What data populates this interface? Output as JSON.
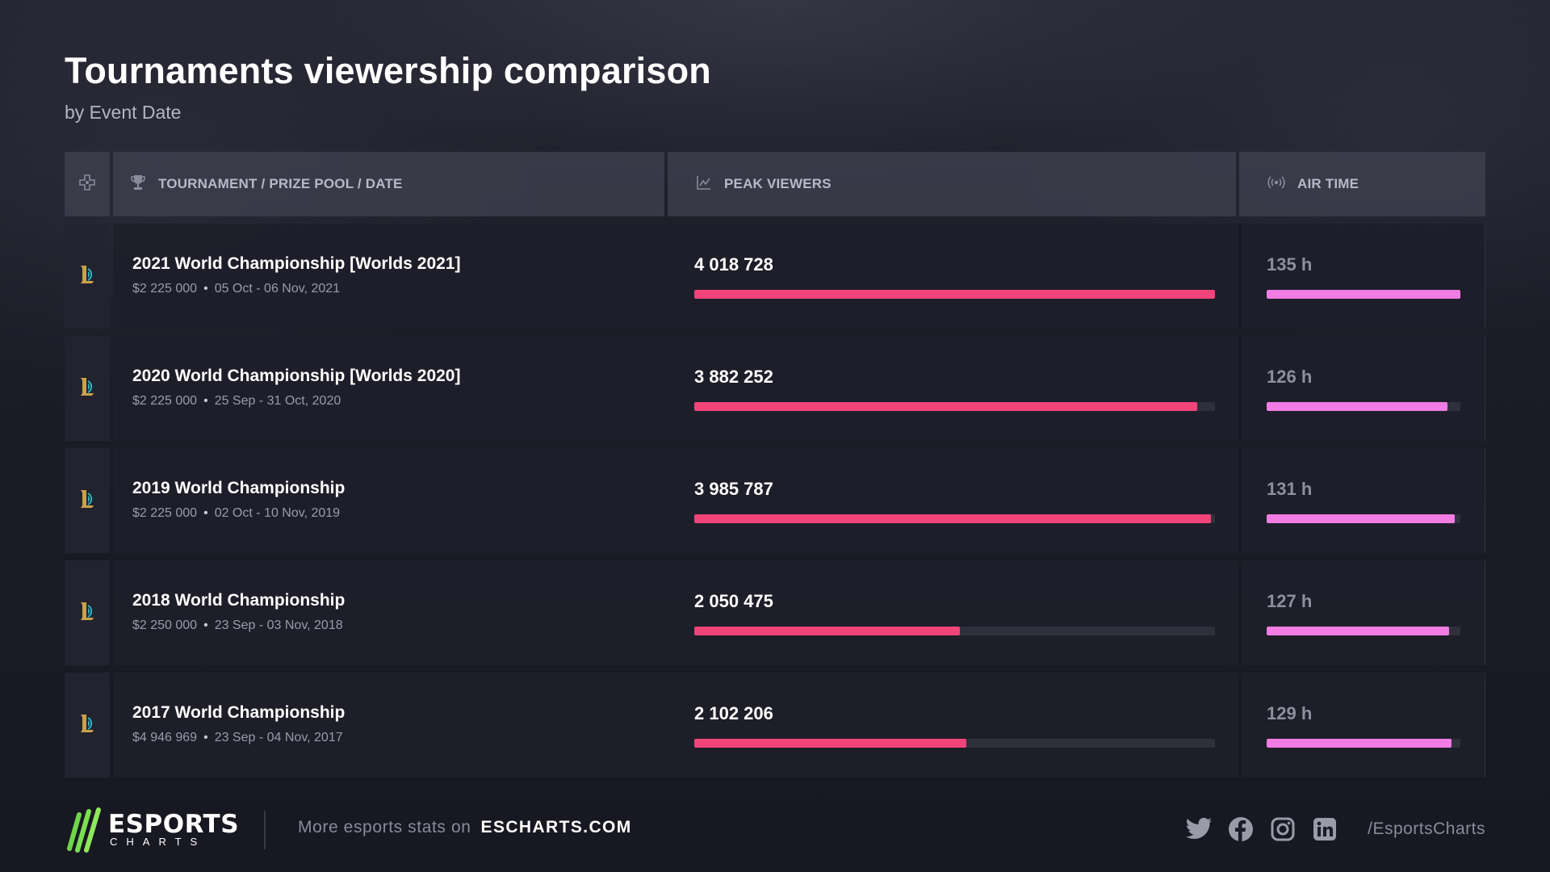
{
  "header": {
    "title": "Tournaments viewership comparison",
    "subtitle": "by Event Date"
  },
  "columns": {
    "game_icon": "gamepad-icon",
    "tournament": "TOURNAMENT / PRIZE POOL / DATE",
    "peak_viewers": "PEAK VIEWERS",
    "air_time": "AIR TIME"
  },
  "colors": {
    "peak_bar": "#f0447a",
    "air_bar": "#f07ce4",
    "track": "#30303d",
    "brand_green": "#6fd64a"
  },
  "rows": [
    {
      "name": "2021 World Championship [Worlds 2021]",
      "prize": "$2 225 000",
      "dates": "05 Oct - 06 Nov, 2021",
      "peak": "4 018 728",
      "peak_value": 4018728,
      "air": "135 h",
      "air_value": 135
    },
    {
      "name": "2020 World Championship [Worlds 2020]",
      "prize": "$2 225 000",
      "dates": "25 Sep - 31 Oct, 2020",
      "peak": "3 882 252",
      "peak_value": 3882252,
      "air": "126 h",
      "air_value": 126
    },
    {
      "name": "2019 World Championship",
      "prize": "$2 225 000",
      "dates": "02 Oct - 10 Nov, 2019",
      "peak": "3 985 787",
      "peak_value": 3985787,
      "air": "131 h",
      "air_value": 131
    },
    {
      "name": "2018 World Championship",
      "prize": "$2 250 000",
      "dates": "23 Sep - 03 Nov, 2018",
      "peak": "2 050 475",
      "peak_value": 2050475,
      "air": "127 h",
      "air_value": 127
    },
    {
      "name": "2017 World Championship",
      "prize": "$4 946 969",
      "dates": "23 Sep - 04 Nov, 2017",
      "peak": "2 102 206",
      "peak_value": 2102206,
      "air": "129 h",
      "air_value": 129
    }
  ],
  "footer": {
    "logo_main": "ESPORTS",
    "logo_sub": "CHARTS",
    "promo_text": "More esports stats on",
    "promo_site": "ESCHARTS.COM",
    "socials": [
      "twitter-icon",
      "facebook-icon",
      "instagram-icon",
      "linkedin-icon"
    ],
    "handle": "/EsportsCharts"
  }
}
